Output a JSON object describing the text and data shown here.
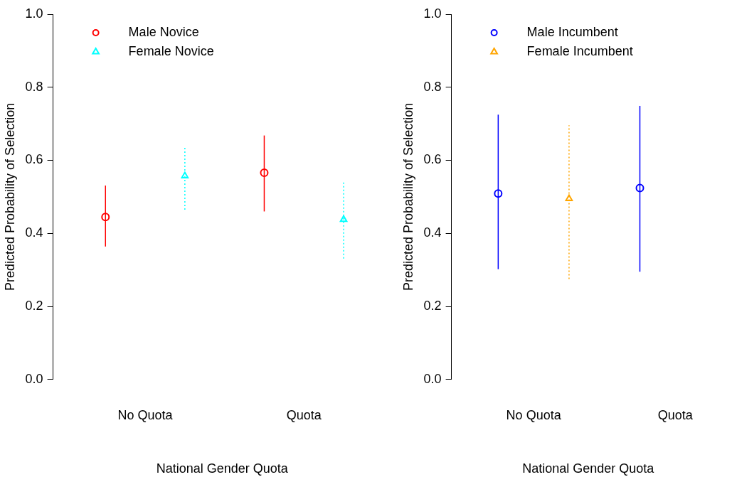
{
  "chart_data": [
    {
      "type": "scatter",
      "categories": [
        "No Quota",
        "Quota"
      ],
      "xlabel": "National Gender Quota",
      "ylabel": "Predicted Probability of Selection",
      "ylim": [
        0,
        1
      ],
      "yticks": [
        {
          "value": 0,
          "label": "0.0"
        },
        {
          "value": 0.2,
          "label": "0.2"
        },
        {
          "value": 0.4,
          "label": "0.4"
        },
        {
          "value": 0.6,
          "label": "0.6"
        },
        {
          "value": 0.8,
          "label": "0.8"
        },
        {
          "value": 1,
          "label": "1.0"
        }
      ],
      "grid": false,
      "legend": "top left",
      "series": [
        {
          "name": "Male Novice",
          "color": "#ff0000",
          "marker": "circle",
          "line_style": "solid",
          "values": [
            0.445,
            0.566
          ],
          "errors": [
            [
              0.364,
              0.531
            ],
            [
              0.46,
              0.668
            ]
          ]
        },
        {
          "name": "Female Novice",
          "color": "#00ffff",
          "marker": "triangle",
          "line_style": "dotted",
          "values": [
            0.557,
            0.438
          ],
          "errors": [
            [
              0.465,
              0.634
            ],
            [
              0.331,
              0.542
            ]
          ]
        }
      ]
    },
    {
      "type": "scatter",
      "categories": [
        "No Quota",
        "Quota"
      ],
      "xlabel": "National Gender Quota",
      "ylabel": "Predicted Probability of Selection",
      "ylim": [
        0,
        1
      ],
      "yticks": [
        {
          "value": 0,
          "label": "0.0"
        },
        {
          "value": 0.2,
          "label": "0.2"
        },
        {
          "value": 0.4,
          "label": "0.4"
        },
        {
          "value": 0.6,
          "label": "0.6"
        },
        {
          "value": 0.8,
          "label": "0.8"
        },
        {
          "value": 1,
          "label": "1.0"
        }
      ],
      "grid": false,
      "legend": "top left",
      "series": [
        {
          "name": "Male Incumbent",
          "color": "#0000ff",
          "marker": "circle",
          "line_style": "solid",
          "values": [
            0.509,
            0.524
          ],
          "errors": [
            [
              0.302,
              0.725
            ],
            [
              0.295,
              0.749
            ]
          ]
        },
        {
          "name": "Female Incumbent",
          "color": "#ffa500",
          "marker": "triangle",
          "line_style": "dotted",
          "values": [
            0.495,
            null
          ],
          "errors": [
            [
              0.275,
              0.696
            ],
            null
          ]
        }
      ]
    }
  ]
}
